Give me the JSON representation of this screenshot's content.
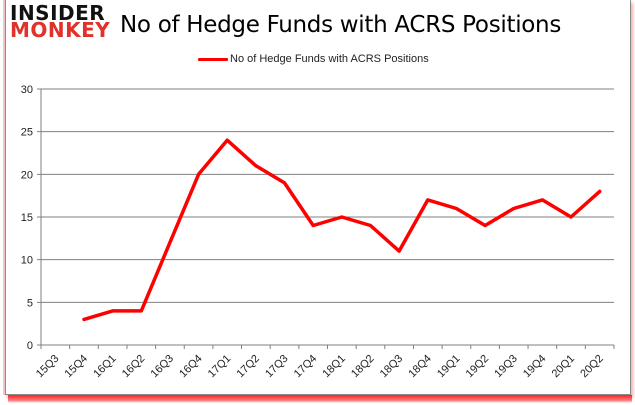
{
  "logo": {
    "line1": "INSIDER",
    "line2": "MONKEY"
  },
  "title": "No of Hedge Funds with ACRS Positions",
  "legend": {
    "label": "No of Hedge Funds with ACRS Positions",
    "color": "#ff0000"
  },
  "colors": {
    "line": "#ff0000",
    "grid": "#808080",
    "axis": "#808080",
    "brand_red": "#e0312a"
  },
  "chart_data": {
    "type": "line",
    "title": "No of Hedge Funds with ACRS Positions",
    "xlabel": "",
    "ylabel": "",
    "ylim": [
      0,
      30
    ],
    "yticks": [
      0,
      5,
      10,
      15,
      20,
      25,
      30
    ],
    "grid": true,
    "legend_position": "top",
    "categories": [
      "15Q3",
      "15Q4",
      "16Q1",
      "16Q2",
      "16Q3",
      "16Q4",
      "17Q1",
      "17Q2",
      "17Q3",
      "17Q4",
      "18Q1",
      "18Q2",
      "18Q3",
      "18Q4",
      "19Q1",
      "19Q2",
      "19Q3",
      "19Q4",
      "20Q1",
      "20Q2"
    ],
    "series": [
      {
        "name": "No of Hedge Funds with ACRS Positions",
        "values": [
          null,
          3,
          4,
          4,
          12,
          20,
          24,
          21,
          19,
          14,
          15,
          14,
          11,
          17,
          16,
          14,
          16,
          17,
          15,
          18
        ]
      }
    ]
  }
}
